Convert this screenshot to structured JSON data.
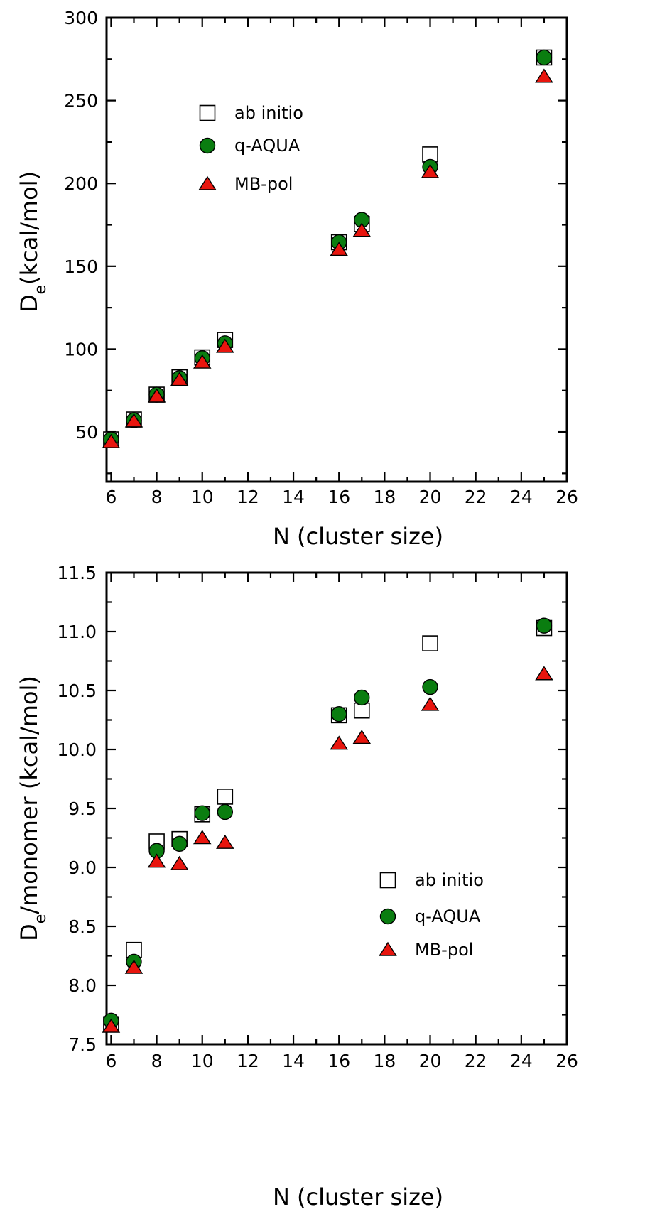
{
  "chart_data": [
    {
      "type": "scatter",
      "xlabel": "N (cluster size)",
      "ylabel_main": "D",
      "ylabel_sub": "e",
      "ylabel_rest": "(kcal/mol)",
      "xlim": [
        5.8,
        26
      ],
      "ylim": [
        20,
        300
      ],
      "xticks": [
        6,
        8,
        10,
        12,
        14,
        16,
        18,
        20,
        22,
        24,
        26
      ],
      "yticks": [
        50,
        100,
        150,
        200,
        250,
        300
      ],
      "ytick_labels": [
        "50",
        "100",
        "150",
        "200",
        "250",
        "300"
      ],
      "legend_position": "upper-left",
      "series": [
        {
          "name": "ab initio",
          "marker": "square",
          "color": "#ffffff",
          "x": [
            6,
            7,
            8,
            9,
            10,
            11,
            16,
            17,
            20,
            25
          ],
          "y": [
            45.5,
            57.5,
            72.5,
            83,
            95,
            105.5,
            164.5,
            175.5,
            217.5,
            276
          ]
        },
        {
          "name": "q-AQUA",
          "marker": "circle",
          "color": "#0a7d10",
          "x": [
            6,
            7,
            8,
            9,
            10,
            11,
            16,
            17,
            20,
            25
          ],
          "y": [
            45.5,
            57,
            72.5,
            82.5,
            94.5,
            103.5,
            164.5,
            178,
            210,
            276
          ]
        },
        {
          "name": "MB-pol",
          "marker": "triangle",
          "color": "#e8150e",
          "x": [
            6,
            7,
            8,
            9,
            10,
            11,
            16,
            17,
            20,
            25
          ],
          "y": [
            44,
            56.5,
            71.5,
            81.5,
            92,
            101.5,
            160,
            171.5,
            207,
            264.5
          ]
        }
      ]
    },
    {
      "type": "scatter",
      "xlabel": "N (cluster size)",
      "ylabel_main": "D",
      "ylabel_sub": "e",
      "ylabel_rest": "/monomer (kcal/mol)",
      "xlim": [
        5.8,
        26
      ],
      "ylim": [
        7.5,
        11.5
      ],
      "xticks": [
        6,
        8,
        10,
        12,
        14,
        16,
        18,
        20,
        22,
        24,
        26
      ],
      "yticks": [
        7.5,
        8.0,
        8.5,
        9.0,
        9.5,
        10.0,
        10.5,
        11.0,
        11.5
      ],
      "ytick_labels": [
        "7.5",
        "8.0",
        "8.5",
        "9.0",
        "9.5",
        "10.0",
        "10.5",
        "11.0",
        "11.5"
      ],
      "legend_position": "lower-right",
      "series": [
        {
          "name": "ab initio",
          "marker": "square",
          "color": "#ffffff",
          "x": [
            6,
            7,
            8,
            9,
            10,
            11,
            16,
            17,
            20,
            25
          ],
          "y": [
            7.67,
            8.3,
            9.22,
            9.24,
            9.45,
            9.6,
            10.29,
            10.33,
            10.9,
            11.03
          ]
        },
        {
          "name": "q-AQUA",
          "marker": "circle",
          "color": "#0a7d10",
          "x": [
            6,
            7,
            8,
            9,
            10,
            11,
            16,
            17,
            20,
            25
          ],
          "y": [
            7.7,
            8.2,
            9.14,
            9.2,
            9.46,
            9.47,
            10.3,
            10.44,
            10.53,
            11.05
          ]
        },
        {
          "name": "MB-pol",
          "marker": "triangle",
          "color": "#e8150e",
          "x": [
            6,
            7,
            8,
            9,
            10,
            11,
            16,
            17,
            20,
            25
          ],
          "y": [
            7.65,
            8.15,
            9.05,
            9.03,
            9.25,
            9.21,
            10.05,
            10.1,
            10.38,
            10.64
          ]
        }
      ]
    }
  ]
}
